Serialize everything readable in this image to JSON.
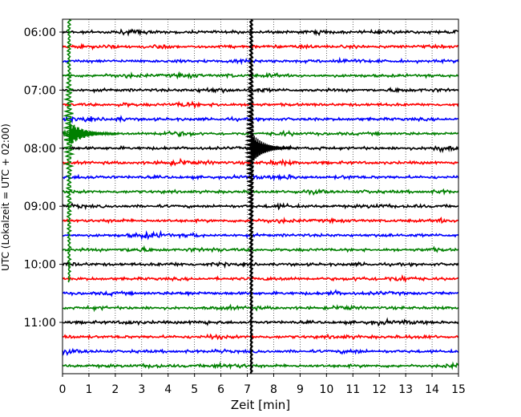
{
  "chart_data": {
    "type": "line",
    "title": "",
    "xlabel": "Zeit  [min]",
    "ylabel": "UTC (Lokalzeit = UTC + 02:00)",
    "xlim": [
      0,
      15
    ],
    "x_ticks": [
      0,
      1,
      2,
      3,
      4,
      5,
      6,
      7,
      8,
      9,
      10,
      11,
      12,
      13,
      14,
      15
    ],
    "x_tick_labels": [
      "0",
      "1",
      "2",
      "3",
      "4",
      "5",
      "6",
      "7",
      "8",
      "9",
      "10",
      "11",
      "12",
      "13",
      "14",
      "15"
    ],
    "y_tick_labels": [
      "06:00",
      "07:00",
      "08:00",
      "09:00",
      "10:00",
      "11:00"
    ],
    "grid": {
      "vertical_dotted": true
    },
    "trace_interval_minutes": 15,
    "first_trace_start": "06:00",
    "last_trace_start": "11:45",
    "line_colors": [
      "#000000",
      "#ff0000",
      "#0000ff",
      "#008000"
    ],
    "traces": [
      {
        "start": "06:00",
        "color": "#000000"
      },
      {
        "start": "06:15",
        "color": "#ff0000"
      },
      {
        "start": "06:30",
        "color": "#0000ff"
      },
      {
        "start": "06:45",
        "color": "#008000"
      },
      {
        "start": "07:00",
        "color": "#000000"
      },
      {
        "start": "07:15",
        "color": "#ff0000"
      },
      {
        "start": "07:30",
        "color": "#0000ff"
      },
      {
        "start": "07:45",
        "color": "#008000"
      },
      {
        "start": "08:00",
        "color": "#000000"
      },
      {
        "start": "08:15",
        "color": "#ff0000"
      },
      {
        "start": "08:30",
        "color": "#0000ff"
      },
      {
        "start": "08:45",
        "color": "#008000"
      },
      {
        "start": "09:00",
        "color": "#000000"
      },
      {
        "start": "09:15",
        "color": "#ff0000"
      },
      {
        "start": "09:30",
        "color": "#0000ff"
      },
      {
        "start": "09:45",
        "color": "#008000"
      },
      {
        "start": "10:00",
        "color": "#000000"
      },
      {
        "start": "10:15",
        "color": "#ff0000"
      },
      {
        "start": "10:30",
        "color": "#0000ff"
      },
      {
        "start": "10:45",
        "color": "#008000"
      },
      {
        "start": "11:00",
        "color": "#000000"
      },
      {
        "start": "11:15",
        "color": "#ff0000"
      },
      {
        "start": "11:30",
        "color": "#0000ff"
      },
      {
        "start": "11:45",
        "color": "#008000"
      }
    ],
    "events": [
      {
        "description": "large green spike",
        "trace_start": "07:45",
        "minute": 0.25,
        "color": "#008000"
      },
      {
        "description": "black seismic event",
        "trace_start": "08:00",
        "minute": 7.15,
        "color": "#000000"
      }
    ]
  }
}
